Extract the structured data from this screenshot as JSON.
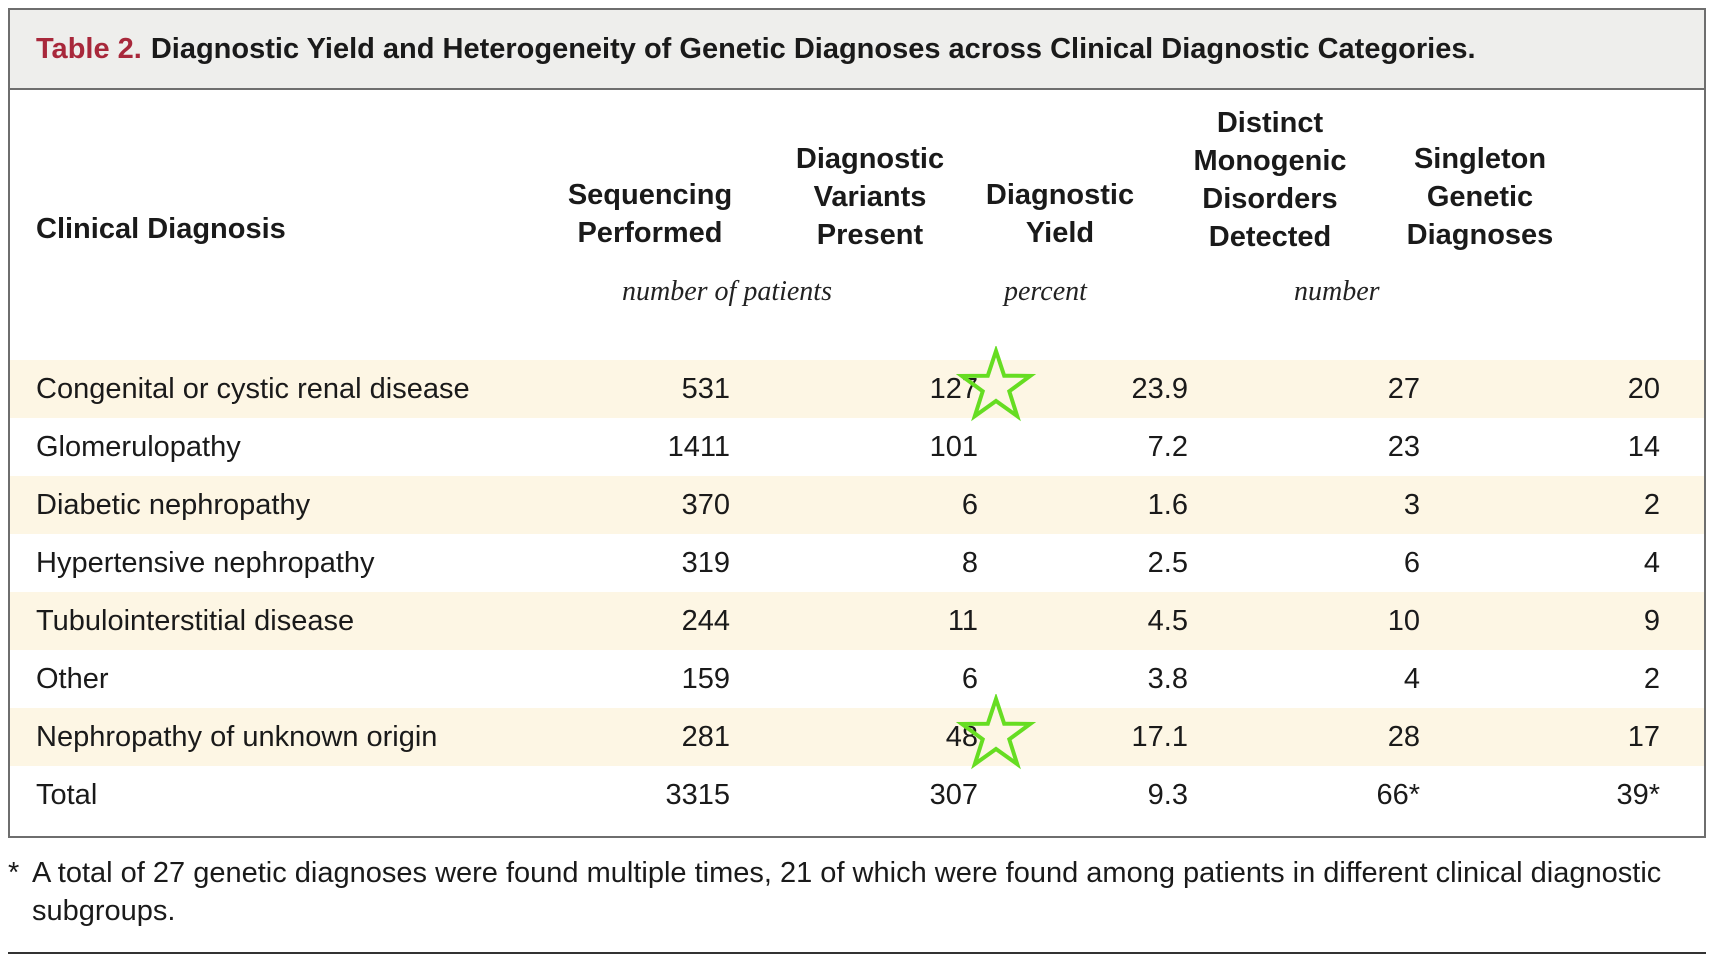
{
  "caption": {
    "label": "Table 2.",
    "title": "Diagnostic Yield and Heterogeneity of Genetic Diagnoses across Clinical Diagnostic Categories."
  },
  "header": {
    "columns": [
      [
        "Clinical Diagnosis"
      ],
      [
        "Sequencing",
        "Performed"
      ],
      [
        "Diagnostic",
        "Variants",
        "Present"
      ],
      [
        "Diagnostic",
        "Yield"
      ],
      [
        "Distinct",
        "Monogenic",
        "Disorders",
        "Detected"
      ],
      [
        "Singleton",
        "Genetic",
        "Diagnoses"
      ]
    ],
    "units": {
      "patients": "number of patients",
      "percent": "percent",
      "number": "number"
    }
  },
  "rows": [
    {
      "diagnosis": "Congenital or cystic renal disease",
      "sequencing": "531",
      "variants": "127",
      "yield": "23.9",
      "disorders": "27",
      "singleton": "20",
      "shaded": true,
      "star": true
    },
    {
      "diagnosis": "Glomerulopathy",
      "sequencing": "1411",
      "variants": "101",
      "yield": "7.2",
      "disorders": "23",
      "singleton": "14",
      "shaded": false,
      "star": false
    },
    {
      "diagnosis": "Diabetic nephropathy",
      "sequencing": "370",
      "variants": "6",
      "yield": "1.6",
      "disorders": "3",
      "singleton": "2",
      "shaded": true,
      "star": false
    },
    {
      "diagnosis": "Hypertensive nephropathy",
      "sequencing": "319",
      "variants": "8",
      "yield": "2.5",
      "disorders": "6",
      "singleton": "4",
      "shaded": false,
      "star": false
    },
    {
      "diagnosis": "Tubulointerstitial disease",
      "sequencing": "244",
      "variants": "11",
      "yield": "4.5",
      "disorders": "10",
      "singleton": "9",
      "shaded": true,
      "star": false
    },
    {
      "diagnosis": "Other",
      "sequencing": "159",
      "variants": "6",
      "yield": "3.8",
      "disorders": "4",
      "singleton": "2",
      "shaded": false,
      "star": false
    },
    {
      "diagnosis": "Nephropathy of unknown origin",
      "sequencing": "281",
      "variants": "48",
      "yield": "17.1",
      "disorders": "28",
      "singleton": "17",
      "shaded": true,
      "star": true
    },
    {
      "diagnosis": "Total",
      "sequencing": "3315",
      "variants": "307",
      "yield": "9.3",
      "disorders": "66*",
      "singleton": "39*",
      "shaded": false,
      "star": false
    }
  ],
  "footnote": {
    "mark": "*",
    "text": "A total of 27 genetic diagnoses were found multiple times, 21 of which were found among patients in different clinical diagnostic subgroups."
  },
  "colors": {
    "label_red": "#a8283b",
    "caption_bg": "#eeeeec",
    "row_shade": "#fdf6e4",
    "star_green": "#66dd22"
  },
  "icons": {
    "highlight": "star-icon"
  }
}
